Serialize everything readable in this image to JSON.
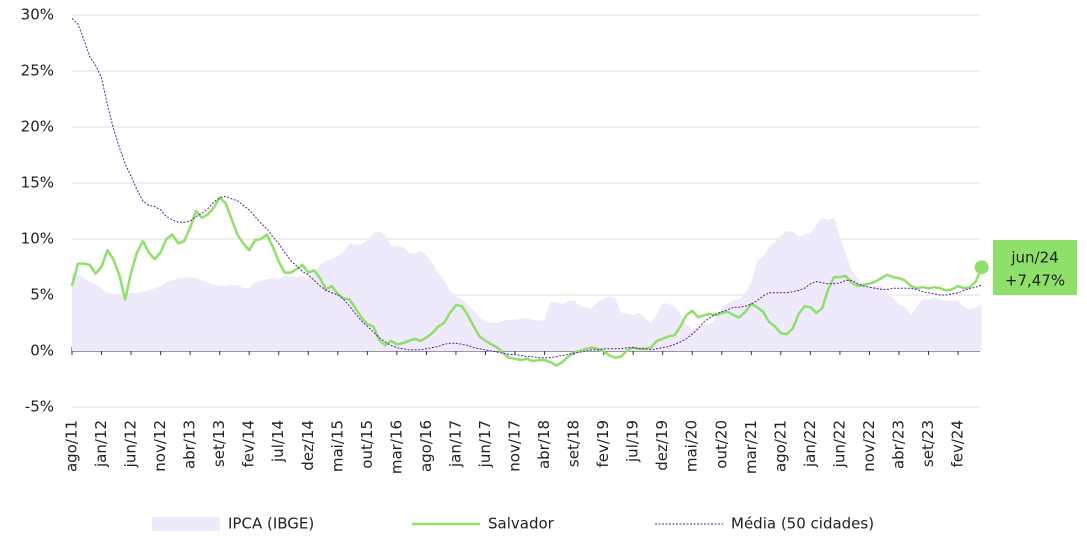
{
  "chart_data": {
    "type": "line",
    "categories": [
      "ago/11",
      null,
      null,
      null,
      null,
      "jan/12",
      null,
      null,
      null,
      null,
      "jun/12",
      null,
      null,
      null,
      null,
      "nov/12",
      null,
      null,
      null,
      null,
      "abr/13",
      null,
      null,
      null,
      null,
      "set/13",
      null,
      null,
      null,
      null,
      "fev/14",
      null,
      null,
      null,
      null,
      "jul/14",
      null,
      null,
      null,
      null,
      "dez/14",
      null,
      null,
      null,
      null,
      "mai/15",
      null,
      null,
      null,
      null,
      "out/15",
      null,
      null,
      null,
      null,
      "mar/16",
      null,
      null,
      null,
      null,
      "ago/16",
      null,
      null,
      null,
      null,
      "jan/17",
      null,
      null,
      null,
      null,
      "jun/17",
      null,
      null,
      null,
      null,
      "nov/17",
      null,
      null,
      null,
      null,
      "abr/18",
      null,
      null,
      null,
      null,
      "set/18",
      null,
      null,
      null,
      null,
      "fev/19",
      null,
      null,
      null,
      null,
      "jul/19",
      null,
      null,
      null,
      null,
      "dez/19",
      null,
      null,
      null,
      null,
      "mai/20",
      null,
      null,
      null,
      null,
      "out/20",
      null,
      null,
      null,
      null,
      "mar/21",
      null,
      null,
      null,
      null,
      "ago/21",
      null,
      null,
      null,
      null,
      "jan/22",
      null,
      null,
      null,
      null,
      "jun/22",
      null,
      null,
      null,
      null,
      "nov/22",
      null,
      null,
      null,
      null,
      "abr/23",
      null,
      null,
      null,
      null,
      "set/23",
      null,
      null,
      null,
      null,
      "fev/24",
      null,
      null,
      null,
      null
    ],
    "series": [
      {
        "name": "IPCA (IBGE)",
        "kind": "area",
        "color": "#efeafb",
        "values": [
          6.9,
          6.8,
          6.5,
          6.2,
          5.9,
          5.6,
          5.2,
          5.1,
          5.1,
          5.2,
          5.2,
          5.2,
          5.3,
          5.4,
          5.6,
          5.8,
          6.2,
          6.3,
          6.5,
          6.5,
          6.6,
          6.5,
          6.3,
          6.1,
          5.9,
          5.8,
          5.8,
          5.9,
          5.9,
          5.6,
          5.6,
          6.1,
          6.3,
          6.4,
          6.5,
          6.5,
          6.7,
          6.6,
          6.6,
          6.7,
          6.4,
          7.0,
          7.7,
          8.1,
          8.2,
          8.5,
          8.9,
          9.6,
          9.5,
          9.5,
          9.9,
          10.5,
          10.7,
          10.4,
          9.4,
          9.3,
          9.3,
          8.8,
          8.7,
          9.0,
          8.5,
          7.9,
          7.0,
          6.3,
          5.4,
          4.8,
          4.6,
          4.1,
          3.6,
          3.0,
          2.7,
          2.5,
          2.5,
          2.7,
          2.8,
          2.8,
          2.9,
          2.9,
          2.8,
          2.7,
          2.8,
          4.4,
          4.4,
          4.2,
          4.5,
          4.5,
          4.0,
          3.9,
          3.8,
          4.4,
          4.6,
          4.9,
          4.7,
          3.4,
          3.4,
          3.2,
          3.4,
          2.9,
          2.5,
          3.3,
          4.3,
          4.2,
          4.0,
          3.3,
          2.4,
          1.9,
          2.1,
          2.3,
          2.4,
          2.9,
          3.9,
          4.3,
          4.5,
          4.6,
          5.2,
          6.1,
          8.1,
          8.4,
          9.3,
          9.7,
          10.3,
          10.7,
          10.7,
          10.2,
          10.4,
          10.5,
          11.3,
          11.9,
          11.7,
          11.9,
          10.1,
          8.7,
          7.2,
          6.5,
          5.9,
          5.8,
          5.8,
          5.8,
          5.2,
          4.7,
          4.2,
          3.9,
          3.2,
          4.0,
          4.6,
          4.6,
          4.8,
          4.6,
          4.5,
          4.5,
          4.5,
          3.9,
          3.7,
          3.9,
          4.2
        ]
      },
      {
        "name": "Salvador",
        "kind": "line",
        "color": "#8ee06a",
        "values": [
          5.8,
          7.8,
          7.8,
          7.7,
          6.9,
          7.5,
          9.0,
          8.2,
          6.8,
          4.6,
          7.0,
          8.8,
          9.8,
          8.8,
          8.2,
          8.8,
          10.0,
          10.4,
          9.6,
          9.8,
          11.0,
          12.5,
          11.9,
          12.2,
          12.8,
          13.7,
          13.2,
          11.8,
          10.4,
          9.6,
          9.0,
          9.9,
          10.0,
          10.4,
          9.3,
          8.0,
          7.0,
          7.0,
          7.3,
          7.7,
          7.0,
          7.2,
          6.5,
          5.5,
          5.8,
          5.1,
          4.7,
          4.6,
          3.8,
          3.0,
          2.4,
          2.2,
          1.0,
          0.5,
          0.9,
          0.6,
          0.7,
          0.9,
          1.1,
          0.9,
          1.2,
          1.6,
          2.2,
          2.5,
          3.4,
          4.1,
          4.0,
          3.2,
          2.2,
          1.3,
          0.9,
          0.6,
          0.3,
          -0.2,
          -0.6,
          -0.7,
          -0.8,
          -0.7,
          -0.9,
          -0.8,
          -0.8,
          -1.0,
          -1.3,
          -1.0,
          -0.5,
          -0.1,
          0.0,
          0.2,
          0.3,
          0.2,
          0.0,
          -0.4,
          -0.6,
          -0.5,
          0.1,
          0.3,
          0.2,
          0.2,
          0.3,
          0.9,
          1.1,
          1.3,
          1.4,
          2.2,
          3.2,
          3.6,
          3.0,
          3.2,
          3.3,
          3.2,
          3.4,
          3.5,
          3.2,
          3.0,
          3.5,
          4.2,
          3.9,
          3.5,
          2.6,
          2.2,
          1.6,
          1.5,
          2.0,
          3.3,
          4.0,
          3.9,
          3.4,
          3.8,
          5.5,
          6.6,
          6.6,
          6.7,
          6.1,
          5.8,
          5.9,
          6.0,
          6.2,
          6.5,
          6.8,
          6.6,
          6.5,
          6.3,
          5.8,
          5.6,
          5.7,
          5.6,
          5.7,
          5.6,
          5.4,
          5.5,
          5.8,
          5.6,
          5.7,
          6.2,
          7.47
        ]
      },
      {
        "name": "Média (50 cidades)",
        "kind": "dotted",
        "color": "#5b1f8f",
        "values": [
          29.7,
          29.2,
          27.8,
          26.3,
          25.5,
          24.4,
          22.0,
          19.9,
          18.2,
          16.7,
          15.6,
          14.4,
          13.4,
          13.0,
          12.9,
          12.6,
          12.0,
          11.7,
          11.5,
          11.5,
          11.6,
          12.0,
          12.3,
          12.7,
          13.3,
          13.7,
          13.8,
          13.6,
          13.4,
          13.0,
          12.6,
          12.0,
          11.4,
          10.9,
          10.2,
          9.6,
          8.8,
          8.1,
          7.6,
          7.1,
          6.8,
          6.3,
          5.8,
          5.4,
          5.2,
          5.0,
          4.6,
          4.0,
          3.3,
          2.7,
          2.2,
          1.7,
          1.2,
          0.8,
          0.5,
          0.3,
          0.2,
          0.1,
          0.1,
          0.1,
          0.2,
          0.3,
          0.4,
          0.6,
          0.7,
          0.7,
          0.6,
          0.5,
          0.3,
          0.2,
          0.1,
          0.0,
          -0.1,
          -0.2,
          -0.3,
          -0.3,
          -0.4,
          -0.5,
          -0.5,
          -0.6,
          -0.6,
          -0.6,
          -0.5,
          -0.4,
          -0.3,
          -0.2,
          -0.1,
          0.0,
          0.1,
          0.1,
          0.2,
          0.2,
          0.2,
          0.2,
          0.3,
          0.3,
          0.2,
          0.2,
          0.1,
          0.2,
          0.3,
          0.4,
          0.6,
          0.8,
          1.1,
          1.5,
          2.0,
          2.6,
          3.0,
          3.3,
          3.5,
          3.7,
          3.9,
          3.9,
          4.0,
          4.2,
          4.5,
          4.9,
          5.2,
          5.2,
          5.2,
          5.2,
          5.3,
          5.4,
          5.6,
          6.0,
          6.2,
          6.1,
          6.0,
          6.0,
          6.1,
          6.3,
          6.3,
          6.0,
          5.8,
          5.7,
          5.6,
          5.5,
          5.5,
          5.6,
          5.6,
          5.6,
          5.6,
          5.5,
          5.3,
          5.2,
          5.1,
          5.0,
          5.0,
          5.1,
          5.2,
          5.4,
          5.6,
          5.7,
          5.9
        ]
      }
    ],
    "ylim": [
      -5,
      30
    ],
    "yticks": [
      {
        "value": -5,
        "label": "-5%"
      },
      {
        "value": 0,
        "label": "0%"
      },
      {
        "value": 5,
        "label": "5%"
      },
      {
        "value": 10,
        "label": "10%"
      },
      {
        "value": 15,
        "label": "15%"
      },
      {
        "value": 20,
        "label": "20%"
      },
      {
        "value": 25,
        "label": "25%"
      },
      {
        "value": 30,
        "label": "30%"
      }
    ],
    "grid": true,
    "annotation": {
      "date": "jun/24",
      "text": "+7,47%"
    }
  }
}
